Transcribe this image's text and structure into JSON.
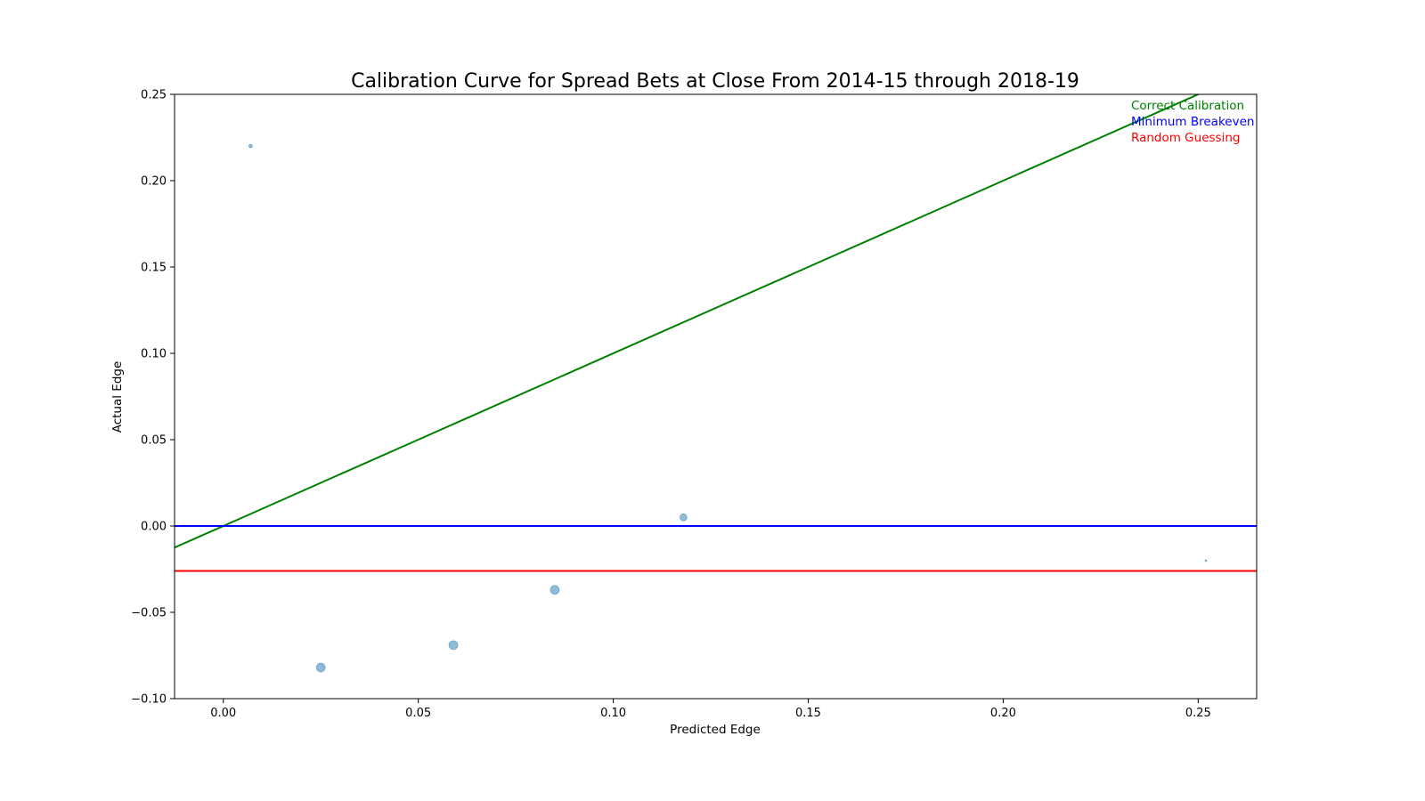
{
  "chart_data": {
    "type": "scatter",
    "title": "Calibration Curve for Spread Bets at Close From 2014-15 through 2018-19",
    "xlabel": "Predicted Edge",
    "ylabel": "Actual Edge",
    "xlim": [
      -0.0125,
      0.265
    ],
    "ylim": [
      -0.1,
      0.25
    ],
    "x_ticks": [
      0.0,
      0.05,
      0.1,
      0.15,
      0.2,
      0.25
    ],
    "x_tick_labels": [
      "0.00",
      "0.05",
      "0.10",
      "0.15",
      "0.20",
      "0.25"
    ],
    "y_ticks": [
      -0.1,
      -0.05,
      0.0,
      0.05,
      0.1,
      0.15,
      0.2,
      0.25
    ],
    "y_tick_labels": [
      "−0.10",
      "−0.05",
      "0.00",
      "0.05",
      "0.10",
      "0.15",
      "0.20",
      "0.25"
    ],
    "grid": false,
    "legend_position": "top-right",
    "points": {
      "color": "#1f77b4",
      "x": [
        0.007,
        0.025,
        0.059,
        0.085,
        0.118,
        0.252
      ],
      "y": [
        0.22,
        -0.082,
        -0.069,
        -0.037,
        0.005,
        -0.02
      ],
      "sizes": [
        2,
        5,
        5,
        5,
        4,
        1
      ]
    },
    "lines": [
      {
        "name": "Correct Calibration",
        "kind": "diagonal",
        "color": "#008000"
      },
      {
        "name": "Minimum Breakeven",
        "kind": "horizontal",
        "y": 0.0,
        "color": "#0000ff"
      },
      {
        "name": "Random Guessing",
        "kind": "horizontal",
        "y": -0.026,
        "color": "#ff0000"
      }
    ]
  }
}
